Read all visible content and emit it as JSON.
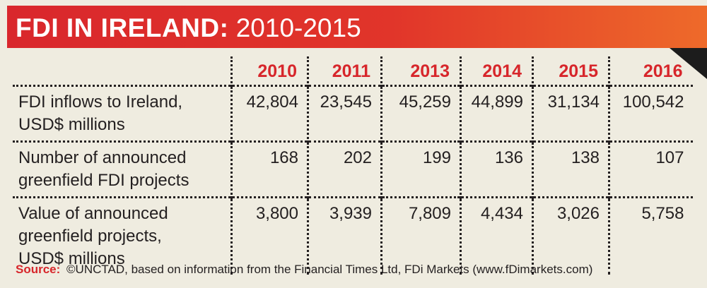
{
  "title": {
    "bold": "FDI IN IRELAND:",
    "light": "2010-2015"
  },
  "colors": {
    "banner_start": "#d9272c",
    "banner_end": "#ee6a2a",
    "year_text": "#d7262b",
    "background": "#efece0",
    "text": "#231f20"
  },
  "table": {
    "years": [
      "2010",
      "2011",
      "2013",
      "2014",
      "2015",
      "2016"
    ],
    "rows": [
      {
        "label_lines": [
          "FDI inflows to Ireland,",
          "USD$ millions"
        ],
        "values": [
          "42,804",
          "23,545",
          "45,259",
          "44,899",
          "31,134",
          "100,542"
        ]
      },
      {
        "label_lines": [
          "Number of announced",
          "greenfield FDI projects"
        ],
        "values": [
          "168",
          "202",
          "199",
          "136",
          "138",
          "107"
        ]
      },
      {
        "label_lines": [
          "Value of announced",
          "greenfield projects,",
          "USD$ millions"
        ],
        "values": [
          "3,800",
          "3,939",
          "7,809",
          "4,434",
          "3,026",
          "5,758"
        ]
      }
    ]
  },
  "source": {
    "label": "Source:",
    "text": "©UNCTAD, based on information from the Financial Times Ltd, FDi Markets (www.fDimarkets.com)"
  }
}
